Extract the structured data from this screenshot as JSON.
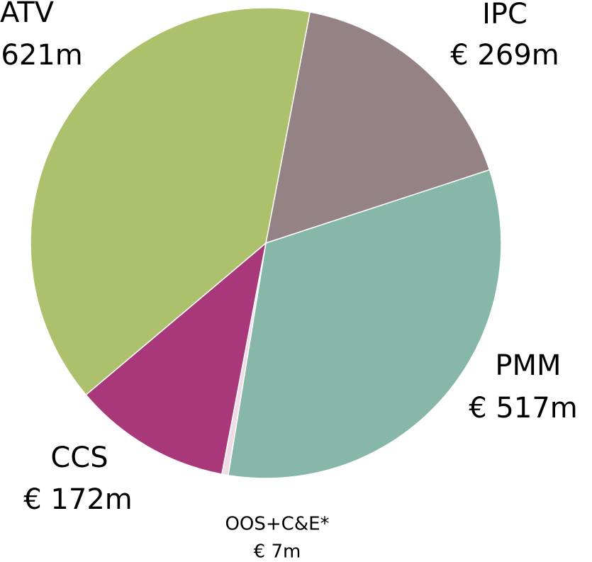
{
  "chart_data": {
    "type": "pie",
    "categories": [
      "IPC",
      "PMM",
      "OOS+C&E*",
      "CCS",
      "ATV"
    ],
    "values": [
      269,
      517,
      7,
      172,
      621
    ],
    "value_labels": [
      "€ 269m",
      "€ 517m",
      "€ 7m",
      "€ 172m",
      "€ 621m"
    ],
    "colors": [
      "#958284",
      "#86b7a8",
      "#f0dce4",
      "#a8387a",
      "#adc06b"
    ]
  }
}
